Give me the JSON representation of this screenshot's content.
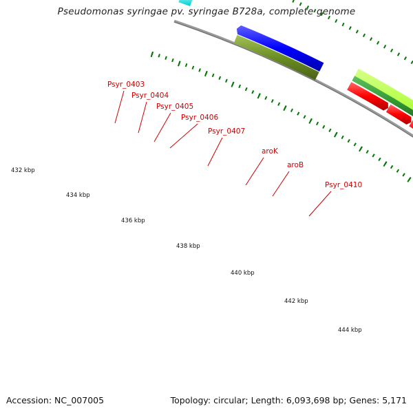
{
  "title": "Pseudomonas syringae pv. syringae B728a, complete genome",
  "footer": {
    "accession": "Accession: NC_007005",
    "summary": "Topology: circular; Length: 6,093,698 bp; Genes: 5,171"
  },
  "scale_labels": [
    "432 kbp",
    "434 kbp",
    "436 kbp",
    "438 kbp",
    "440 kbp",
    "442 kbp",
    "444 kbp"
  ],
  "gene_labels": [
    "Psyr_0403",
    "Psyr_0404",
    "Psyr_0405",
    "Psyr_0406",
    "Psyr_0407",
    "aroK",
    "aroB",
    "Psyr_0410"
  ],
  "colors": {
    "backbone": "#8c8c8c",
    "forward_cds": "#0000ff",
    "reverse_cds": "#ff0000",
    "light_green": "#aaff33",
    "dark_green": "#339933",
    "olive": "#6b8e23",
    "steel_blue": "#4682b4",
    "cyan": "#00ffff",
    "tick": "#007700",
    "label": "#cc0000"
  }
}
